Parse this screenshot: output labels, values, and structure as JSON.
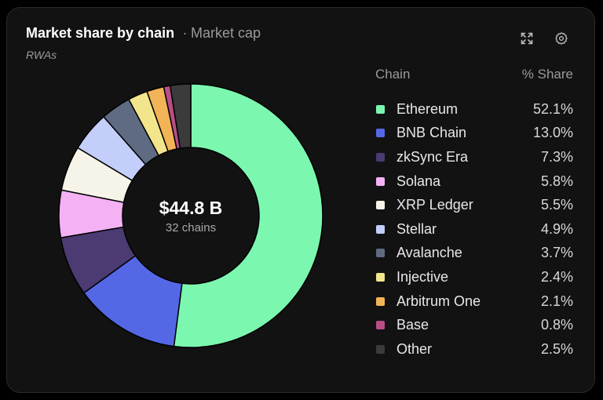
{
  "header": {
    "title": "Market share by chain",
    "separator": "·",
    "subtitle": "Market cap",
    "tag": "RWAs",
    "expand_icon": "expand-icon",
    "settings_icon": "gear-icon"
  },
  "center": {
    "value": "$44.8 B",
    "count": "32 chains"
  },
  "legend_header": {
    "chain": "Chain",
    "share": "% Share"
  },
  "chart_data": {
    "type": "pie",
    "categories": [
      "Ethereum",
      "BNB Chain",
      "zkSync Era",
      "Solana",
      "XRP Ledger",
      "Stellar",
      "Avalanche",
      "Injective",
      "Arbitrum One",
      "Base",
      "Other"
    ],
    "values": [
      52.1,
      13.0,
      7.3,
      5.8,
      5.5,
      4.9,
      3.7,
      2.4,
      2.1,
      0.8,
      2.5
    ],
    "labels": [
      "52.1%",
      "13.0%",
      "7.3%",
      "5.8%",
      "5.5%",
      "4.9%",
      "3.7%",
      "2.4%",
      "2.1%",
      "0.8%",
      "2.5%"
    ],
    "colors": [
      "#7cf7b0",
      "#5468e6",
      "#4c3a72",
      "#f4b2f5",
      "#f6f4e8",
      "#c4cefa",
      "#5f6b82",
      "#f3e58c",
      "#f2b456",
      "#b94e86",
      "#3b3b3b"
    ],
    "donut": true,
    "legend_position": "right"
  }
}
